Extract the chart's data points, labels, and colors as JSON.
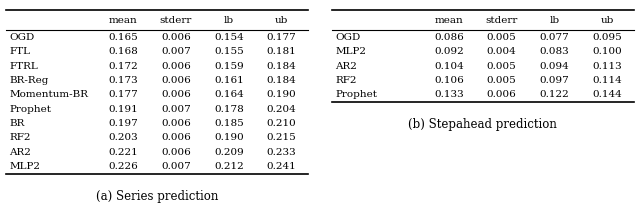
{
  "table_a": {
    "caption": "(a) Series prediction",
    "headers": [
      "",
      "mean",
      "stderr",
      "lb",
      "ub"
    ],
    "rows": [
      [
        "OGD",
        "0.165",
        "0.006",
        "0.154",
        "0.177"
      ],
      [
        "FTL",
        "0.168",
        "0.007",
        "0.155",
        "0.181"
      ],
      [
        "FTRL",
        "0.172",
        "0.006",
        "0.159",
        "0.184"
      ],
      [
        "BR-Reg",
        "0.173",
        "0.006",
        "0.161",
        "0.184"
      ],
      [
        "Momentum-BR",
        "0.177",
        "0.006",
        "0.164",
        "0.190"
      ],
      [
        "Prophet",
        "0.191",
        "0.007",
        "0.178",
        "0.204"
      ],
      [
        "BR",
        "0.197",
        "0.006",
        "0.185",
        "0.210"
      ],
      [
        "RF2",
        "0.203",
        "0.006",
        "0.190",
        "0.215"
      ],
      [
        "AR2",
        "0.221",
        "0.006",
        "0.209",
        "0.233"
      ],
      [
        "MLP2",
        "0.226",
        "0.007",
        "0.212",
        "0.241"
      ]
    ]
  },
  "table_b": {
    "caption": "(b) Stepahead prediction",
    "headers": [
      "",
      "mean",
      "stderr",
      "lb",
      "ub"
    ],
    "rows": [
      [
        "OGD",
        "0.086",
        "0.005",
        "0.077",
        "0.095"
      ],
      [
        "MLP2",
        "0.092",
        "0.004",
        "0.083",
        "0.100"
      ],
      [
        "AR2",
        "0.104",
        "0.005",
        "0.094",
        "0.113"
      ],
      [
        "RF2",
        "0.106",
        "0.005",
        "0.097",
        "0.114"
      ],
      [
        "Prophet",
        "0.133",
        "0.006",
        "0.122",
        "0.144"
      ]
    ]
  },
  "font_size": 7.5,
  "caption_font_size": 8.5,
  "background_color": "#ffffff",
  "line_color": "#000000"
}
